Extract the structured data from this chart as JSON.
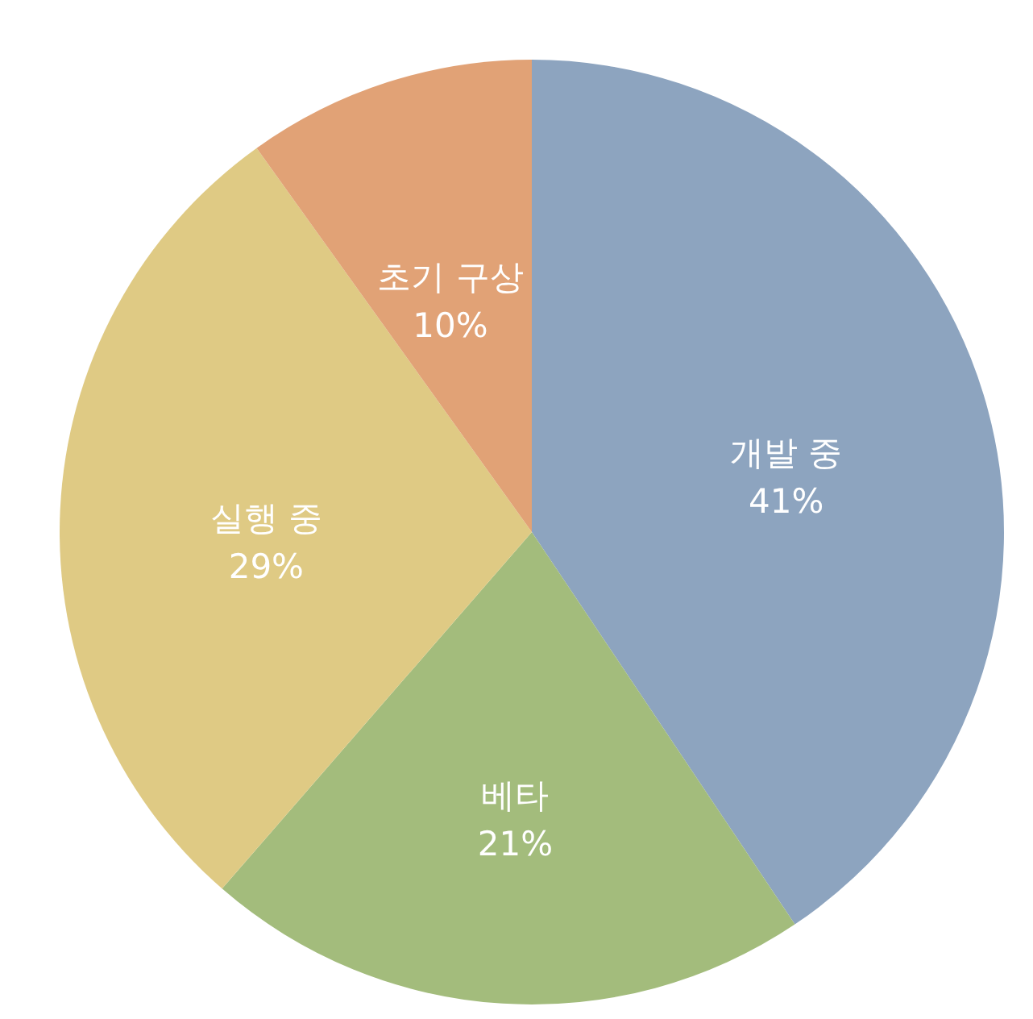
{
  "chart_data": {
    "type": "pie",
    "categories": [
      "개발 중",
      "베타",
      "실행 중",
      "초기 구상"
    ],
    "values": [
      41,
      21,
      29,
      10
    ],
    "value_labels": [
      "41%",
      "21%",
      "29%",
      "10%"
    ],
    "colors": [
      "#8da4bf",
      "#a3bc7c",
      "#dfca84",
      "#e1a276"
    ],
    "legend": false
  }
}
